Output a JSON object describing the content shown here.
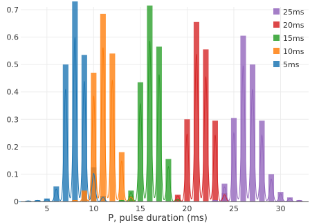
{
  "chart_data": {
    "type": "bar",
    "title": "",
    "xlabel": "P, pulse duration (ms)",
    "ylabel": "",
    "xlim": [
      2.2,
      33.0
    ],
    "ylim": [
      0,
      0.71
    ],
    "x_ticks": [
      5,
      10,
      15,
      20,
      25,
      30
    ],
    "y_ticks": [
      0,
      0.1,
      0.2,
      0.3,
      0.4,
      0.5,
      0.6,
      0.7
    ],
    "bar_width": 0.6,
    "grid": true,
    "legend_position": "top-right",
    "legend_order": [
      "25ms",
      "20ms",
      "15ms",
      "10ms",
      "5ms"
    ],
    "series": [
      {
        "name": "5ms",
        "color": "#1f77b4",
        "x": [
          3,
          4,
          5,
          6,
          7,
          8,
          9,
          10,
          11
        ],
        "values": [
          0.003,
          0.005,
          0.011,
          0.055,
          0.5,
          0.73,
          0.535,
          0.125,
          0.02
        ]
      },
      {
        "name": "10ms",
        "color": "#ff7f0e",
        "x": [
          8,
          9,
          10,
          11,
          12,
          13,
          14
        ],
        "values": [
          0.005,
          0.04,
          0.47,
          0.685,
          0.54,
          0.18,
          0.02
        ]
      },
      {
        "name": "15ms",
        "color": "#2ca02c",
        "x": [
          13,
          14,
          15,
          16,
          17,
          18,
          19
        ],
        "values": [
          0.005,
          0.04,
          0.435,
          0.715,
          0.565,
          0.155,
          0.01
        ]
      },
      {
        "name": "20ms",
        "color": "#d62728",
        "x": [
          19,
          20,
          21,
          22,
          23,
          24
        ],
        "values": [
          0.025,
          0.3,
          0.655,
          0.555,
          0.295,
          0.03
        ]
      },
      {
        "name": "25ms",
        "color": "#9467bd",
        "x": [
          23,
          24,
          25,
          26,
          27,
          28,
          29,
          30,
          31,
          32
        ],
        "values": [
          0.005,
          0.065,
          0.305,
          0.605,
          0.5,
          0.295,
          0.1,
          0.035,
          0.015,
          0.005
        ]
      }
    ]
  }
}
